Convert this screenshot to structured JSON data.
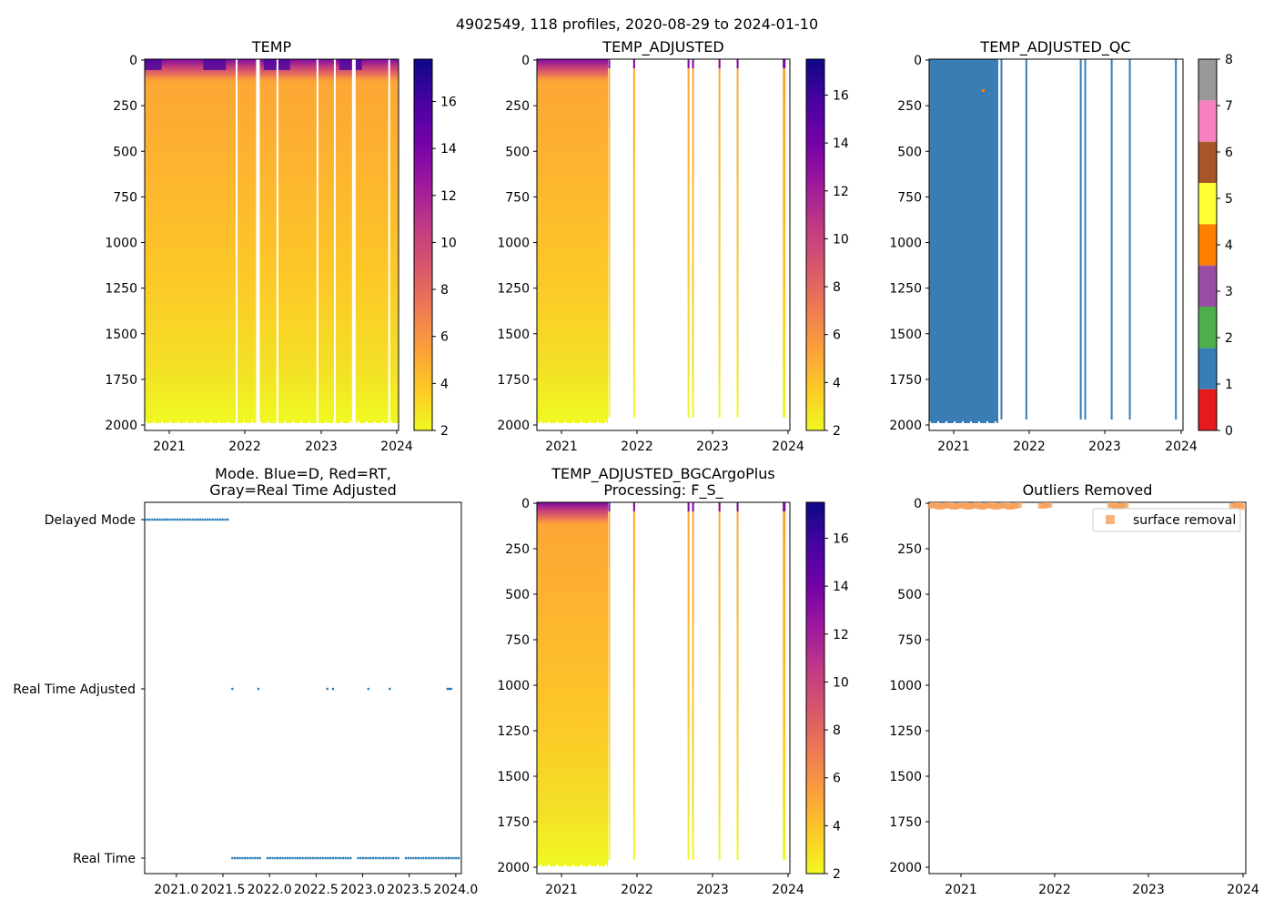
{
  "figure": {
    "suptitle": "4902549, 118 profiles, 2020-08-29 to 2024-01-10"
  },
  "colors": {
    "plasma_r": [
      "#f0f921",
      "#fdca26",
      "#fb9f3a",
      "#ed7953",
      "#d8576b",
      "#bd3786",
      "#9c179e",
      "#7201a8",
      "#46039f",
      "#0d0887"
    ],
    "qc_flags": [
      "#e41a1c",
      "#377eb8",
      "#4daf4a",
      "#984ea3",
      "#ff7f00",
      "#ffff33",
      "#a65628",
      "#f781bf",
      "#999999"
    ],
    "qc_main": "#3a7db5",
    "mode_dots": "#1f77b4",
    "outlier_marker": "#f5a05a"
  },
  "chart_data": [
    {
      "id": "temp",
      "type": "heatmap",
      "title": "TEMP",
      "x_ticks": [
        "2021",
        "2022",
        "2023",
        "2024"
      ],
      "y_ticks": [
        "0",
        "250",
        "500",
        "750",
        "1000",
        "1250",
        "1500",
        "1750",
        "2000"
      ],
      "ylim": [
        2050,
        0
      ],
      "colorbar": {
        "min": 2,
        "max": 17.8,
        "ticks": [
          "2",
          "4",
          "6",
          "8",
          "10",
          "12",
          "14",
          "16"
        ]
      }
    },
    {
      "id": "temp_adj",
      "type": "heatmap",
      "title": "TEMP_ADJUSTED",
      "x_ticks": [
        "2021",
        "2022",
        "2023",
        "2024"
      ],
      "y_ticks": [
        "0",
        "250",
        "500",
        "750",
        "1000",
        "1250",
        "1500",
        "1750",
        "2000"
      ],
      "ylim": [
        2050,
        0
      ],
      "colorbar": {
        "min": 2,
        "max": 17.5,
        "ticks": [
          "2",
          "4",
          "6",
          "8",
          "10",
          "12",
          "14",
          "16"
        ]
      }
    },
    {
      "id": "qc",
      "type": "heatmap",
      "title": "TEMP_ADJUSTED_QC",
      "x_ticks": [
        "2021",
        "2022",
        "2023",
        "2024"
      ],
      "y_ticks": [
        "0",
        "250",
        "500",
        "750",
        "1000",
        "1250",
        "1500",
        "1750",
        "2000"
      ],
      "ylim": [
        2050,
        0
      ],
      "colorbar": {
        "min": 0,
        "max": 8,
        "ticks": [
          "0",
          "1",
          "2",
          "3",
          "4",
          "5",
          "6",
          "7",
          "8"
        ]
      },
      "dominant_flag": 1
    },
    {
      "id": "mode",
      "type": "scatter",
      "title_lines": [
        "Mode. Blue=D, Red=RT,",
        "Gray=Real Time Adjusted"
      ],
      "x_ticks": [
        "2021.0",
        "2021.5",
        "2022.0",
        "2022.5",
        "2023.0",
        "2023.5",
        "2024.0"
      ],
      "x_tick_values": [
        2021.0,
        2021.5,
        2022.0,
        2022.5,
        2023.0,
        2023.5,
        2024.0
      ],
      "xlim": [
        2020.66,
        2024.06
      ],
      "y_categories": [
        "Delayed Mode",
        "Real Time Adjusted",
        "Real Time"
      ],
      "delayed_range": [
        2020.66,
        2021.57
      ],
      "real_time_adjusted_points": [
        2021.6,
        2021.88,
        2022.62,
        2022.68,
        2023.06,
        2023.29,
        2023.91,
        2023.93,
        2023.95
      ],
      "real_time_range": [
        2021.6,
        2024.04
      ]
    },
    {
      "id": "bgc",
      "type": "heatmap",
      "title_lines": [
        "TEMP_ADJUSTED_BGCArgoPlus",
        "Processing: F_S_"
      ],
      "x_ticks": [
        "2021",
        "2022",
        "2023",
        "2024"
      ],
      "y_ticks": [
        "0",
        "250",
        "500",
        "750",
        "1000",
        "1250",
        "1500",
        "1750",
        "2000"
      ],
      "ylim": [
        2050,
        0
      ],
      "colorbar": {
        "min": 2,
        "max": 17.5,
        "ticks": [
          "2",
          "4",
          "6",
          "8",
          "10",
          "12",
          "14",
          "16"
        ]
      }
    },
    {
      "id": "outliers",
      "type": "scatter",
      "title": "Outliers Removed",
      "x_ticks": [
        "2021",
        "2022",
        "2023",
        "2024"
      ],
      "y_ticks": [
        "0",
        "250",
        "500",
        "750",
        "1000",
        "1250",
        "1500",
        "1750",
        "2000"
      ],
      "ylim": [
        2050,
        0
      ],
      "legend": {
        "label": "surface removal",
        "placement": "upper-right"
      },
      "surface_segments": [
        [
          2020.66,
          2021.62
        ],
        [
          2021.86,
          2021.95
        ],
        [
          2022.6,
          2022.76
        ],
        [
          2023.9,
          2024.02
        ]
      ],
      "marker_depth": 5
    }
  ]
}
